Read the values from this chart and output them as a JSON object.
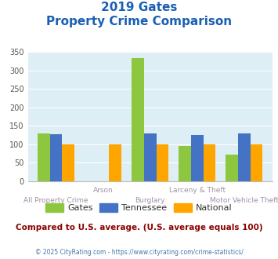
{
  "title_line1": "2019 Gates",
  "title_line2": "Property Crime Comparison",
  "categories": [
    "All Property Crime",
    "Arson",
    "Burglary",
    "Larceny & Theft",
    "Motor Vehicle Theft"
  ],
  "x_labels_top": [
    "",
    "Arson",
    "",
    "Larceny & Theft",
    ""
  ],
  "x_labels_bottom": [
    "All Property Crime",
    "",
    "Burglary",
    "",
    "Motor Vehicle Theft"
  ],
  "gates": [
    130,
    0,
    333,
    95,
    73
  ],
  "tennessee": [
    127,
    0,
    130,
    125,
    130
  ],
  "national": [
    100,
    100,
    100,
    100,
    100
  ],
  "gates_color": "#8dc63f",
  "tennessee_color": "#4472c4",
  "national_color": "#ffa500",
  "bg_color": "#ddeef4",
  "title_color": "#1a5fb4",
  "xlabel_color": "#a090a8",
  "footer_text": "Compared to U.S. average. (U.S. average equals 100)",
  "footer_color": "#8b0000",
  "credit_text": "© 2025 CityRating.com - https://www.cityrating.com/crime-statistics/",
  "credit_color": "#4477aa",
  "ylim": [
    0,
    350
  ],
  "yticks": [
    0,
    50,
    100,
    150,
    200,
    250,
    300,
    350
  ]
}
